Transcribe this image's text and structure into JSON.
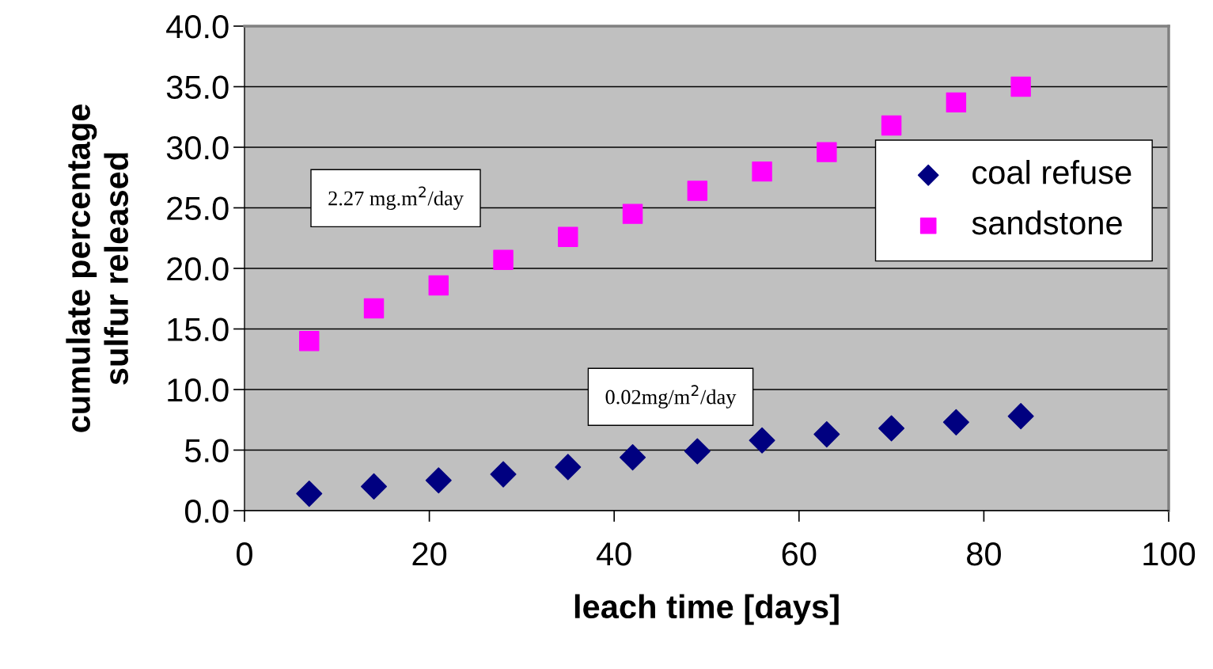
{
  "chart_data": {
    "type": "scatter",
    "xlabel": "leach time [days]",
    "ylabel": "cumulate percentage\nsulfur released",
    "x": [
      7,
      14,
      21,
      28,
      35,
      42,
      49,
      56,
      63,
      70,
      77,
      84
    ],
    "series": [
      {
        "name": "coal refuse",
        "color": "#000080",
        "marker": "diamond",
        "values": [
          1.4,
          2.0,
          2.5,
          3.0,
          3.6,
          4.4,
          4.9,
          5.8,
          6.3,
          6.8,
          7.3,
          7.8
        ]
      },
      {
        "name": "sandstone",
        "color": "#ff00ff",
        "marker": "square",
        "values": [
          14.0,
          16.7,
          18.6,
          20.7,
          22.6,
          24.5,
          26.4,
          28.0,
          29.6,
          31.8,
          33.7,
          35.0
        ]
      }
    ],
    "annotations": [
      "2.27 mg.m$^{2}$/day",
      "0.02mg/m$^{2}$/day"
    ],
    "xlim": [
      0,
      100
    ],
    "xticks": [
      0,
      20,
      40,
      60,
      80,
      100
    ],
    "ylim": [
      0,
      40
    ],
    "yticks": [
      {
        "value": 0,
        "label": "0.0"
      },
      {
        "value": 5,
        "label": "5.0"
      },
      {
        "value": 10,
        "label": "10.0"
      },
      {
        "value": 15,
        "label": "15.0"
      },
      {
        "value": 20,
        "label": "20.0"
      },
      {
        "value": 25,
        "label": "25.0"
      },
      {
        "value": 30,
        "label": "30.0"
      },
      {
        "value": 35,
        "label": "35.0"
      },
      {
        "value": 40,
        "label": "40.0"
      }
    ],
    "grid": "y",
    "legend": "right"
  }
}
